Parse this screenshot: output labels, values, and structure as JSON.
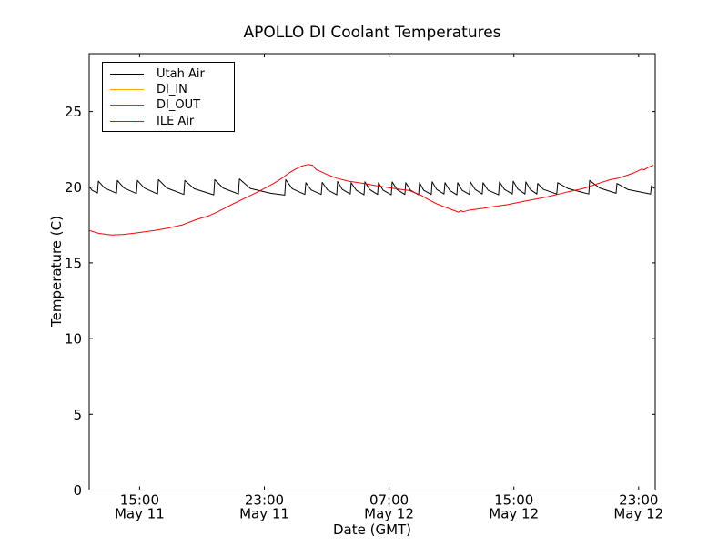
{
  "figure": {
    "title": "APOLLO DI Coolant Temperatures",
    "xlabel": "Date (GMT)",
    "ylabel": "Temperature (C)"
  },
  "legend": {
    "items": [
      {
        "label": "Utah Air"
      },
      {
        "label": "DI_IN"
      },
      {
        "label": "DI_OUT"
      },
      {
        "label": "ILE Air"
      }
    ]
  },
  "chart_data": {
    "type": "line",
    "title": "APOLLO DI Coolant Temperatures",
    "xlabel": "Date (GMT)",
    "ylabel": "Temperature (C)",
    "x_unit": "hours since May 11 00:00 GMT",
    "xlim": [
      11.77,
      48.06
    ],
    "ylim": [
      0,
      28.82
    ],
    "grid": false,
    "legend_position": "upper left",
    "x_ticks": [
      {
        "hours": 15,
        "time": "15:00",
        "date": "May 11"
      },
      {
        "hours": 23,
        "time": "23:00",
        "date": "May 11"
      },
      {
        "hours": 31,
        "time": "07:00",
        "date": "May 12"
      },
      {
        "hours": 39,
        "time": "15:00",
        "date": "May 12"
      },
      {
        "hours": 47,
        "time": "23:00",
        "date": "May 12"
      }
    ],
    "y_ticks": [
      0,
      5,
      10,
      15,
      20,
      25
    ],
    "series": [
      {
        "name": "Utah Air",
        "color": "#000000",
        "shape": "sawtooth oscillation ~19.5-20.5 C",
        "points": [
          [
            11.77,
            20.05
          ],
          [
            11.95,
            19.8
          ],
          [
            12.3,
            19.62
          ],
          [
            12.36,
            20.4
          ],
          [
            12.75,
            19.95
          ],
          [
            13.52,
            19.6
          ],
          [
            13.58,
            20.45
          ],
          [
            14.0,
            19.95
          ],
          [
            14.8,
            19.58
          ],
          [
            14.86,
            20.45
          ],
          [
            15.3,
            19.95
          ],
          [
            16.15,
            19.55
          ],
          [
            16.21,
            20.5
          ],
          [
            16.75,
            19.95
          ],
          [
            17.84,
            19.52
          ],
          [
            17.9,
            20.45
          ],
          [
            18.5,
            19.9
          ],
          [
            19.76,
            19.5
          ],
          [
            19.82,
            20.5
          ],
          [
            20.35,
            19.95
          ],
          [
            21.34,
            19.55
          ],
          [
            21.4,
            20.55
          ],
          [
            22.1,
            19.92
          ],
          [
            23.4,
            19.6
          ],
          [
            24.31,
            19.48
          ],
          [
            24.37,
            20.5
          ],
          [
            24.8,
            19.9
          ],
          [
            25.6,
            19.52
          ],
          [
            25.66,
            20.3
          ],
          [
            26.0,
            19.82
          ],
          [
            26.65,
            19.52
          ],
          [
            26.71,
            20.32
          ],
          [
            27.05,
            19.82
          ],
          [
            27.64,
            19.5
          ],
          [
            27.7,
            20.38
          ],
          [
            28.0,
            19.85
          ],
          [
            28.51,
            19.55
          ],
          [
            28.57,
            20.3
          ],
          [
            28.9,
            19.8
          ],
          [
            29.39,
            19.5
          ],
          [
            29.45,
            20.36
          ],
          [
            29.75,
            19.85
          ],
          [
            30.26,
            19.52
          ],
          [
            30.32,
            20.3
          ],
          [
            30.62,
            19.8
          ],
          [
            31.14,
            19.5
          ],
          [
            31.2,
            20.35
          ],
          [
            31.5,
            19.85
          ],
          [
            32.01,
            19.52
          ],
          [
            32.07,
            20.3
          ],
          [
            32.38,
            19.8
          ],
          [
            32.89,
            19.5
          ],
          [
            32.95,
            20.3
          ],
          [
            33.22,
            19.8
          ],
          [
            33.7,
            19.52
          ],
          [
            33.76,
            20.36
          ],
          [
            34.05,
            19.85
          ],
          [
            34.52,
            19.55
          ],
          [
            34.58,
            20.3
          ],
          [
            34.88,
            19.8
          ],
          [
            35.34,
            19.5
          ],
          [
            35.4,
            20.3
          ],
          [
            35.68,
            19.8
          ],
          [
            36.15,
            19.52
          ],
          [
            36.21,
            20.35
          ],
          [
            36.52,
            19.85
          ],
          [
            36.97,
            19.55
          ],
          [
            37.03,
            20.3
          ],
          [
            37.35,
            19.8
          ],
          [
            38.02,
            19.5
          ],
          [
            38.08,
            20.35
          ],
          [
            38.4,
            19.85
          ],
          [
            38.9,
            19.55
          ],
          [
            38.96,
            20.4
          ],
          [
            39.25,
            19.88
          ],
          [
            39.71,
            19.55
          ],
          [
            39.77,
            20.35
          ],
          [
            40.05,
            19.85
          ],
          [
            40.47,
            19.55
          ],
          [
            40.53,
            20.25
          ],
          [
            40.9,
            19.85
          ],
          [
            41.75,
            19.55
          ],
          [
            41.81,
            20.3
          ],
          [
            42.5,
            19.9
          ],
          [
            43.8,
            19.55
          ],
          [
            43.86,
            20.45
          ],
          [
            44.5,
            19.95
          ],
          [
            45.55,
            19.6
          ],
          [
            45.61,
            20.25
          ],
          [
            46.3,
            19.85
          ],
          [
            47.76,
            19.55
          ],
          [
            47.82,
            20.1
          ],
          [
            48.0,
            19.92
          ]
        ]
      },
      {
        "name": "DI_IN",
        "color": "#ffa500",
        "note": "appears in legend only; no visible data in plot",
        "points": []
      },
      {
        "name": "DI_OUT",
        "color": "#9932cc",
        "note": "appears in legend only; no visible data in plot",
        "points": []
      },
      {
        "name": "ILE Air",
        "color": "#ff0000",
        "shape": "smooth diurnal curve: min ~16.9, peak ~21.5, dip ~18.4, rise to ~21.5",
        "points": [
          [
            11.77,
            17.15
          ],
          [
            12.4,
            16.95
          ],
          [
            13.2,
            16.85
          ],
          [
            13.93,
            16.88
          ],
          [
            14.8,
            16.98
          ],
          [
            15.97,
            17.15
          ],
          [
            16.8,
            17.3
          ],
          [
            17.72,
            17.5
          ],
          [
            18.6,
            17.85
          ],
          [
            19.4,
            18.1
          ],
          [
            20.05,
            18.4
          ],
          [
            21.0,
            18.9
          ],
          [
            21.8,
            19.3
          ],
          [
            22.5,
            19.65
          ],
          [
            22.97,
            19.9
          ],
          [
            23.6,
            20.25
          ],
          [
            24.14,
            20.6
          ],
          [
            24.6,
            20.95
          ],
          [
            25.0,
            21.2
          ],
          [
            25.4,
            21.4
          ],
          [
            25.8,
            21.5
          ],
          [
            26.1,
            21.45
          ],
          [
            26.2,
            21.3
          ],
          [
            26.35,
            21.15
          ],
          [
            26.6,
            21.05
          ],
          [
            27.0,
            20.85
          ],
          [
            27.64,
            20.6
          ],
          [
            28.4,
            20.4
          ],
          [
            29.39,
            20.25
          ],
          [
            30.2,
            20.1
          ],
          [
            31.14,
            19.95
          ],
          [
            31.8,
            19.85
          ],
          [
            32.3,
            19.78
          ],
          [
            33.0,
            19.5
          ],
          [
            33.5,
            19.2
          ],
          [
            34.05,
            18.9
          ],
          [
            34.8,
            18.6
          ],
          [
            35.2,
            18.45
          ],
          [
            35.45,
            18.35
          ],
          [
            35.6,
            18.45
          ],
          [
            35.75,
            18.38
          ],
          [
            36.2,
            18.5
          ],
          [
            37.0,
            18.6
          ],
          [
            37.55,
            18.7
          ],
          [
            38.6,
            18.85
          ],
          [
            39.3,
            19.0
          ],
          [
            40.3,
            19.2
          ],
          [
            41.05,
            19.35
          ],
          [
            41.9,
            19.55
          ],
          [
            42.5,
            19.7
          ],
          [
            43.4,
            19.9
          ],
          [
            44.0,
            20.1
          ],
          [
            44.55,
            20.3
          ],
          [
            45.2,
            20.5
          ],
          [
            45.7,
            20.6
          ],
          [
            46.3,
            20.8
          ],
          [
            46.7,
            20.95
          ],
          [
            47.0,
            21.1
          ],
          [
            47.2,
            21.2
          ],
          [
            47.35,
            21.15
          ],
          [
            47.6,
            21.3
          ],
          [
            47.8,
            21.4
          ],
          [
            47.95,
            21.45
          ]
        ]
      }
    ]
  }
}
